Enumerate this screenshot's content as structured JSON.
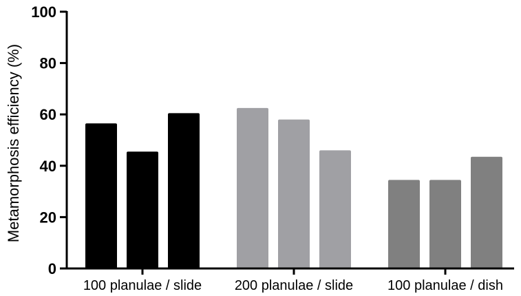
{
  "chart_data": {
    "type": "bar",
    "title": "",
    "xlabel": "",
    "ylabel": "Metamorphosis efficiency (%)",
    "ylim": [
      0,
      100
    ],
    "yticks": [
      0,
      20,
      40,
      60,
      80,
      100
    ],
    "grid": false,
    "legend": "none",
    "categories": [
      "100 planulae / slide",
      "200 planulae / slide",
      "100 planulae / dish"
    ],
    "groups": [
      {
        "label": "100 planulae / slide",
        "color": "#000000",
        "values": [
          56.5,
          45.5,
          60.5
        ]
      },
      {
        "label": "200 planulae / slide",
        "color": "#a0a0a4",
        "values": [
          62.5,
          58,
          46
        ]
      },
      {
        "label": "100 planulae / dish",
        "color": "#808080",
        "values": [
          34.5,
          34.5,
          43.5
        ]
      }
    ]
  }
}
